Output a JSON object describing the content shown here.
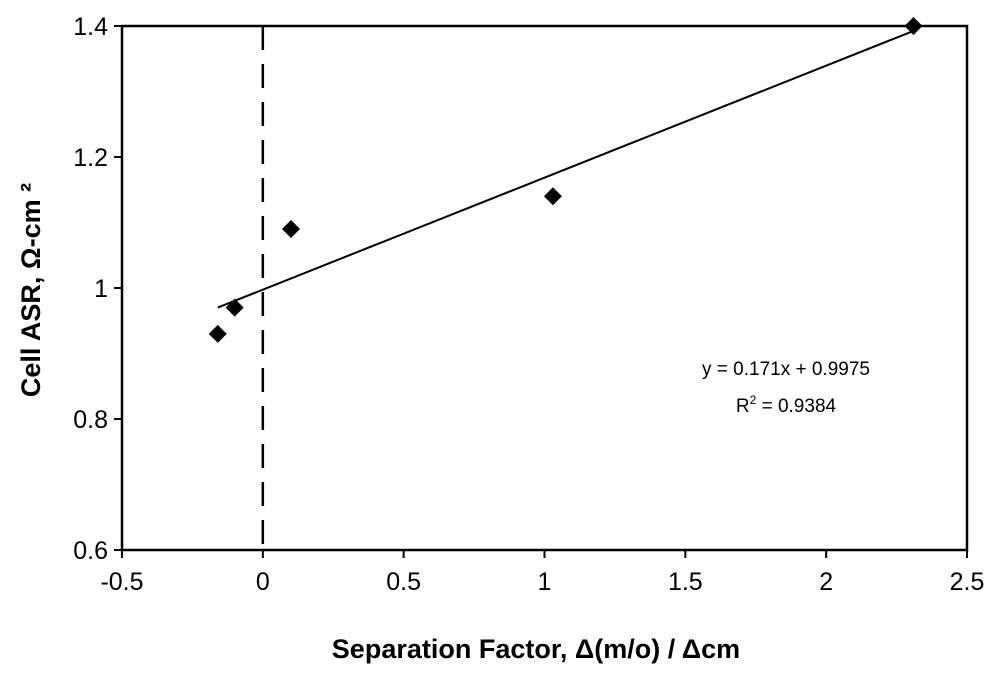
{
  "chart_data": {
    "type": "scatter",
    "xlabel": "Separation Factor, Δ(m/o) / Δcm",
    "ylabel": "Cell ASR, Ω-cm ²",
    "xlim": [
      -0.5,
      2.5
    ],
    "ylim": [
      0.6,
      1.4
    ],
    "x_ticks": [
      "-0.5",
      "0",
      "0.5",
      "1",
      "1.5",
      "2",
      "2.5"
    ],
    "y_ticks": [
      "0.6",
      "0.8",
      "1",
      "1.2",
      "1.4"
    ],
    "grid": false,
    "legend": "none",
    "reference_line": {
      "orientation": "vertical",
      "x": 0,
      "style": "dashed"
    },
    "series": [
      {
        "marker": "diamond",
        "x": [
          -0.16,
          -0.1,
          0.1,
          1.03,
          2.31
        ],
        "y": [
          0.93,
          0.97,
          1.09,
          1.14,
          1.4
        ]
      }
    ],
    "trendline": {
      "type": "linear",
      "slope": 0.171,
      "intercept": 0.9975,
      "x_range": [
        -0.16,
        2.31
      ]
    },
    "annotations": {
      "equation": "y = 0.171x + 0.9975",
      "r2_prefix": "R",
      "r2_sup": "2",
      "r2_value": " = 0.9384"
    },
    "colors": {
      "axis": "#000000",
      "marker": "#000000",
      "background": "#ffffff"
    }
  }
}
